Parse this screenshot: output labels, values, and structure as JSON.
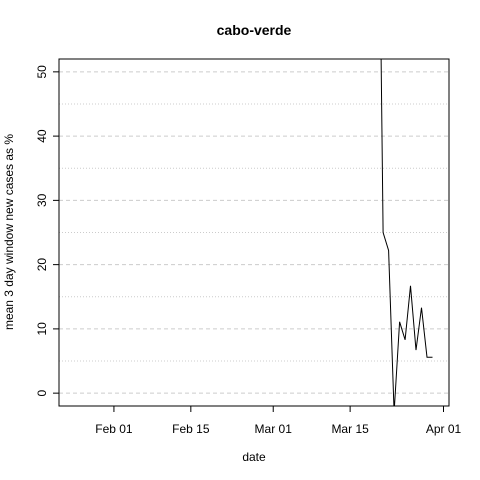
{
  "chart_data": {
    "type": "line",
    "title": "cabo-verde",
    "xlabel": "date",
    "ylabel": "mean  3  day window new cases as %",
    "x_ticks": [
      "Feb 01",
      "Feb 15",
      "Mar 01",
      "Mar 15",
      "Apr 01"
    ],
    "y_ticks": [
      0,
      10,
      20,
      30,
      40,
      50
    ],
    "xlim": [
      "2020-01-22",
      "2020-04-02"
    ],
    "ylim": [
      -2,
      52
    ],
    "grid": {
      "major": "dashed",
      "minor": "dotted",
      "orientation": "horizontal"
    },
    "series": [
      {
        "x": [
          "2020-03-20",
          "2020-03-21",
          "2020-03-22",
          "2020-03-23",
          "2020-03-24",
          "2020-03-25",
          "2020-03-26",
          "2020-03-27",
          "2020-03-28",
          "2020-03-29",
          "2020-03-30",
          "2020-03-31"
        ],
        "y": [
          100,
          25,
          22.2,
          -3,
          11.1,
          8.3,
          16.7,
          6.7,
          13.3,
          5.6,
          5.6,
          null
        ],
        "color": "#000000"
      }
    ]
  }
}
